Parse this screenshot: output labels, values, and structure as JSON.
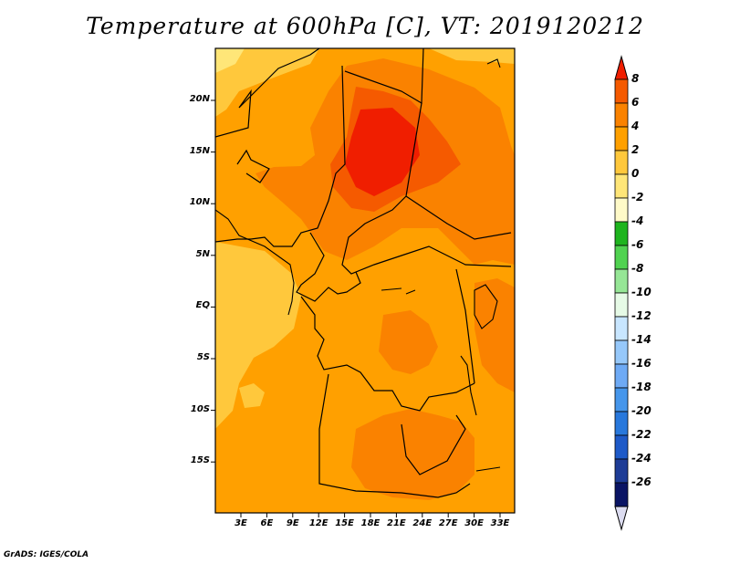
{
  "title": "Temperature at 600hPa [C], VT: 2019120212",
  "footer": "GrADS: IGES/COLA",
  "map": {
    "lat_labels": [
      "20N",
      "15N",
      "10N",
      "5N",
      "EQ",
      "5S",
      "10S",
      "15S"
    ],
    "lon_labels": [
      "3E",
      "6E",
      "9E",
      "12E",
      "15E",
      "18E",
      "21E",
      "24E",
      "27E",
      "30E",
      "33E"
    ]
  },
  "colorbar": {
    "levels": [
      "8",
      "6",
      "4",
      "2",
      "0",
      "-2",
      "-4",
      "-6",
      "-8",
      "-10",
      "-12",
      "-14",
      "-16",
      "-18",
      "-20",
      "-22",
      "-24",
      "-26"
    ],
    "colors": [
      "#f01e00",
      "#f55a00",
      "#fa8200",
      "#ffa000",
      "#ffc83c",
      "#ffe678",
      "#fffac8",
      "#1eb41e",
      "#50d250",
      "#96e696",
      "#e6fae6",
      "#c8e6ff",
      "#96c8fa",
      "#6eaaf5",
      "#4696eb",
      "#2878dc",
      "#1e5ac8",
      "#1e3c96",
      "#0a1464",
      "#dcdcf0"
    ]
  }
}
